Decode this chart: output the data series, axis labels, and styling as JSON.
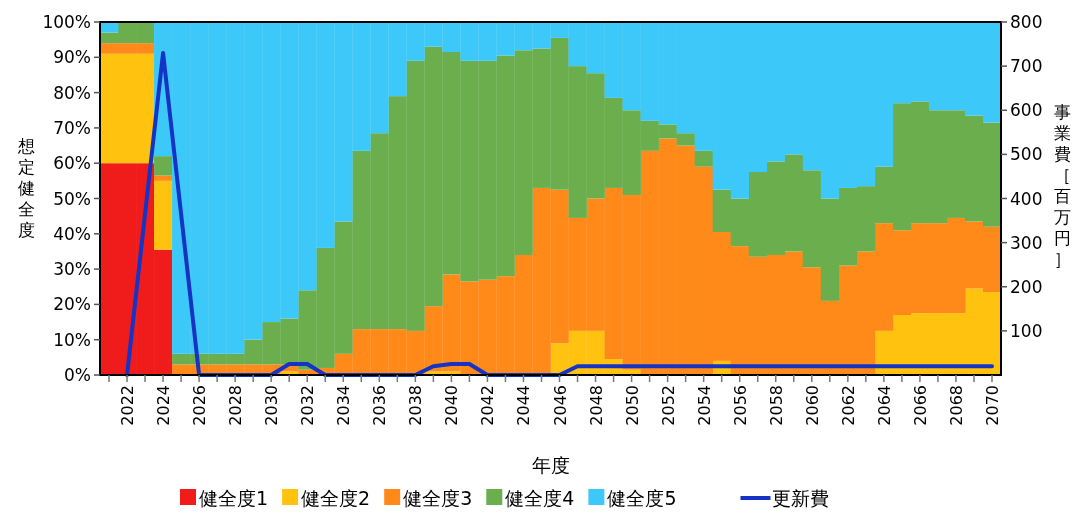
{
  "chart_data": {
    "type": "bar",
    "stacked": true,
    "legend": "bottom",
    "xlabel": "年度",
    "ylabel": "想定健全度",
    "y2label": "事業費［百万円］",
    "categories": [
      null,
      "2022",
      null,
      "2024",
      null,
      "2026",
      null,
      "2028",
      null,
      "2030",
      null,
      "2032",
      null,
      "2034",
      null,
      "2036",
      null,
      "2038",
      null,
      "2040",
      null,
      "2042",
      null,
      "2044",
      null,
      "2046",
      null,
      "2048",
      null,
      "2050",
      null,
      "2052",
      null,
      "2054",
      null,
      "2056",
      null,
      "2058",
      null,
      "2060",
      null,
      "2062",
      null,
      "2064",
      null,
      "2066",
      null,
      "2068",
      null,
      "2070"
    ],
    "ylim": [
      0,
      100
    ],
    "yticks": [
      {
        "value": 0,
        "label": "0%"
      },
      {
        "value": 10,
        "label": "10%"
      },
      {
        "value": 20,
        "label": "20%"
      },
      {
        "value": 30,
        "label": "30%"
      },
      {
        "value": 40,
        "label": "40%"
      },
      {
        "value": 50,
        "label": "50%"
      },
      {
        "value": 60,
        "label": "60%"
      },
      {
        "value": 70,
        "label": "70%"
      },
      {
        "value": 80,
        "label": "80%"
      },
      {
        "value": 90,
        "label": "90%"
      },
      {
        "value": 100,
        "label": "100%"
      }
    ],
    "y2lim": [
      0,
      800
    ],
    "y2ticks": [
      100,
      200,
      300,
      400,
      500,
      600,
      700,
      800
    ],
    "series": [
      {
        "name": "健全度1",
        "color": "#f01c1c",
        "values": [
          60,
          60,
          60,
          35.5,
          0,
          0,
          0,
          0,
          0,
          0,
          0,
          0,
          0,
          0,
          0,
          0,
          0,
          0,
          0,
          0,
          0,
          0,
          0,
          0,
          0,
          0,
          0,
          0,
          0,
          0,
          0,
          0,
          0,
          0,
          0,
          0,
          0,
          0,
          0,
          0,
          0,
          0,
          0,
          0,
          0,
          0,
          0,
          0,
          0,
          0
        ]
      },
      {
        "name": "健全度2",
        "color": "#ffc20e",
        "values": [
          31,
          31,
          31,
          19.5,
          0,
          0,
          0,
          0,
          0,
          null,
          1,
          0,
          0,
          0,
          0,
          0,
          0,
          0,
          1,
          1,
          0,
          0,
          0,
          0,
          0,
          9,
          12.5,
          12.5,
          4.5,
          1.5,
          0,
          0,
          0,
          0,
          4,
          0,
          0,
          0,
          0,
          0,
          0,
          0,
          0,
          12.5,
          17,
          17.5,
          17.5,
          17.5,
          24.5,
          23.5
        ]
      },
      {
        "name": "健全度3",
        "color": "#ff8a1a",
        "values": [
          3,
          3,
          3,
          1.5,
          3,
          3,
          3,
          3,
          3,
          3,
          2,
          1.5,
          2,
          6,
          13,
          13,
          13,
          12.5,
          18.5,
          27.5,
          26.5,
          27,
          28,
          34,
          53,
          43.5,
          32,
          37.5,
          48.5,
          49.5,
          63.5,
          67,
          65,
          59,
          36.5,
          36.5,
          33.5,
          34,
          35,
          30.5,
          21,
          31,
          35,
          30.5,
          24,
          25.5,
          25.5,
          27,
          19,
          18.5
        ]
      },
      {
        "name": "健全度4",
        "color": "#6aae4e",
        "values": [
          3,
          6,
          6,
          5.5,
          3,
          3,
          3,
          3,
          7,
          12,
          13,
          22.5,
          34,
          37.5,
          50.5,
          55.5,
          66,
          76.5,
          73.5,
          63,
          62.5,
          62,
          62.5,
          58,
          39.5,
          43,
          43,
          35.5,
          25.5,
          24,
          8.5,
          4,
          3.5,
          4.5,
          12,
          13.5,
          24,
          26.5,
          27.5,
          27.5,
          29,
          22,
          18.5,
          16,
          36,
          34.5,
          32,
          30.5,
          30,
          29.5
        ]
      },
      {
        "name": "健全度5",
        "color": "#3cc8f8",
        "values": [
          3,
          0,
          0,
          38,
          94,
          94,
          94,
          94,
          90,
          85,
          84,
          76,
          64,
          56.5,
          36.5,
          31.5,
          21,
          11,
          7,
          8.5,
          11,
          11,
          9.5,
          8,
          7.5,
          4.5,
          12.5,
          14.5,
          21.5,
          25,
          28,
          29,
          31.5,
          36.5,
          47.5,
          50,
          42.5,
          39.5,
          37.5,
          42,
          50,
          47,
          46.5,
          41,
          23,
          22.5,
          25,
          25,
          26.5,
          28.5
        ]
      },
      {
        "name": "更新費",
        "type": "line",
        "axis": "y2",
        "color": "#1533c4",
        "values": [
          null,
          0,
          365,
          730,
          365,
          0,
          0,
          0,
          0,
          0,
          25,
          25,
          0,
          0,
          0,
          0,
          0,
          0,
          20,
          25,
          25,
          0,
          0,
          0,
          0,
          0,
          20,
          20,
          20,
          20,
          20,
          20,
          20,
          20,
          20,
          20,
          20,
          20,
          20,
          20,
          20,
          20,
          20,
          20,
          20,
          20,
          20,
          20,
          20,
          20
        ]
      }
    ]
  }
}
